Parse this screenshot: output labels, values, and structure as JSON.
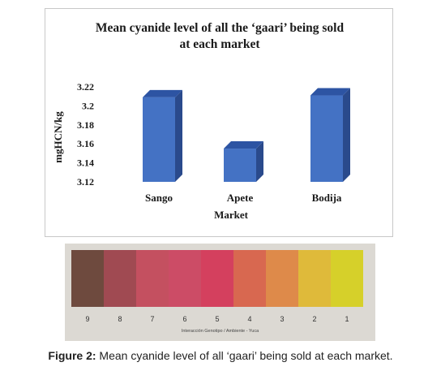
{
  "chart_data": {
    "type": "bar",
    "title_lines": [
      "Mean cyanide level of all the ‘gaari’ being sold",
      "at each market"
    ],
    "categories": [
      "Sango",
      "Apete",
      "Bodija"
    ],
    "values": [
      3.209,
      3.155,
      3.211
    ],
    "xlabel": "Market",
    "ylabel": "mgHCN/kg",
    "ylim": [
      3.12,
      3.22
    ],
    "yticks": [
      "3.22",
      "3.2",
      "3.18",
      "3.16",
      "3.14",
      "3.12"
    ],
    "bar_color": "#4472c4",
    "grid": false,
    "legend": "none"
  },
  "color_strip": {
    "numbers": [
      "9",
      "8",
      "7",
      "6",
      "5",
      "4",
      "3",
      "2",
      "1"
    ],
    "colors": [
      "#6e4a3e",
      "#a04a52",
      "#c45060",
      "#cc4c66",
      "#d4405e",
      "#d86850",
      "#de8a4a",
      "#dfba3a",
      "#d6d02a"
    ],
    "caption": "Interacción Genotipo / Ambiente - Yuca"
  },
  "figure_caption": {
    "label": "Figure 2:",
    "text": " Mean cyanide level of all ‘gaari’ being sold at each market."
  }
}
